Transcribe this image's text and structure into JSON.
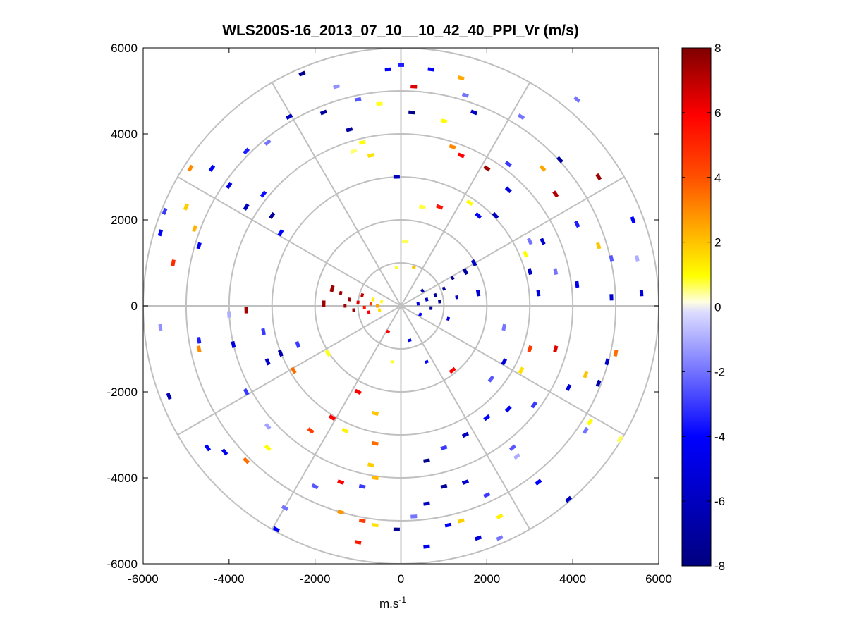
{
  "window": {
    "title": "WLS200S-16_2013_07_10__10_42_40_PPI_Vr (m/s)"
  },
  "chart_data": {
    "type": "scatter",
    "subtype": "polar-ppi",
    "title": "WLS200S-16_2013_07_10__10_42_40_PPI_Vr (m/s)",
    "xlabel": "m.s",
    "xlabel_superscript": "-1",
    "ylabel": "",
    "xlim": [
      -6000,
      6000
    ],
    "ylim": [
      -6000,
      6000
    ],
    "x_ticks": [
      -6000,
      -4000,
      -2000,
      0,
      2000,
      4000,
      6000
    ],
    "y_ticks": [
      -6000,
      -4000,
      -2000,
      0,
      2000,
      4000,
      6000
    ],
    "polar_rings": [
      1000,
      2000,
      3000,
      4000,
      5000,
      6000
    ],
    "polar_spokes_deg": [
      0,
      30,
      60,
      90,
      120,
      150,
      180,
      210,
      240,
      270,
      300,
      330
    ],
    "grid": true,
    "colorbar": {
      "min": -8,
      "max": 8,
      "ticks": [
        -8,
        -6,
        -4,
        -2,
        0,
        2,
        4,
        6,
        8
      ],
      "colormap": "blue-white-yellow-red",
      "colors": {
        "minus8": "#00007f",
        "minus4": "#0000ff",
        "zero_low": "#dcdcff",
        "zero_high": "#ffffe0",
        "plus1": "#ffff00",
        "plus4": "#ff5000",
        "plus6": "#ff0000",
        "plus8": "#7f0000"
      }
    },
    "points": [
      {
        "x": -550,
        "y": 0,
        "v": 2.5
      },
      {
        "x": -700,
        "y": 50,
        "v": 4.5
      },
      {
        "x": -850,
        "y": -40,
        "v": 5.5
      },
      {
        "x": -1000,
        "y": 80,
        "v": 6.5
      },
      {
        "x": -1200,
        "y": 150,
        "v": 7.5
      },
      {
        "x": -1400,
        "y": 300,
        "v": 7.5
      },
      {
        "x": -1600,
        "y": 400,
        "v": 7.5
      },
      {
        "x": -1800,
        "y": 50,
        "v": 7.5
      },
      {
        "x": -1100,
        "y": -100,
        "v": 7.5
      },
      {
        "x": -650,
        "y": 150,
        "v": 1.2
      },
      {
        "x": -450,
        "y": 100,
        "v": 0.8
      },
      {
        "x": -500,
        "y": -100,
        "v": 1.5
      },
      {
        "x": -900,
        "y": 250,
        "v": 7
      },
      {
        "x": -1300,
        "y": 0,
        "v": 7.5
      },
      {
        "x": -750,
        "y": -150,
        "v": 6
      },
      {
        "x": 400,
        "y": 50,
        "v": -5
      },
      {
        "x": 600,
        "y": 150,
        "v": -6
      },
      {
        "x": 800,
        "y": 250,
        "v": -7
      },
      {
        "x": 1000,
        "y": 400,
        "v": -7
      },
      {
        "x": 1200,
        "y": 650,
        "v": -7.5
      },
      {
        "x": 1500,
        "y": 800,
        "v": -7
      },
      {
        "x": 1700,
        "y": 1000,
        "v": -6
      },
      {
        "x": 700,
        "y": -50,
        "v": -7
      },
      {
        "x": 900,
        "y": 100,
        "v": -7.5
      },
      {
        "x": 500,
        "y": 350,
        "v": -6.5
      },
      {
        "x": 1300,
        "y": 200,
        "v": -6
      },
      {
        "x": 1800,
        "y": 300,
        "v": -5.5
      },
      {
        "x": 450,
        "y": -200,
        "v": -4
      },
      {
        "x": 1100,
        "y": -300,
        "v": -5
      },
      {
        "x": -100,
        "y": 900,
        "v": 0.8
      },
      {
        "x": 100,
        "y": 1500,
        "v": 0.7
      },
      {
        "x": 300,
        "y": 900,
        "v": 2
      },
      {
        "x": -200,
        "y": -1300,
        "v": 0.9
      },
      {
        "x": -300,
        "y": -600,
        "v": 6
      },
      {
        "x": 200,
        "y": -800,
        "v": -5
      },
      {
        "x": 600,
        "y": -1300,
        "v": -4
      },
      {
        "x": 1200,
        "y": -1500,
        "v": 6
      },
      {
        "x": -4700,
        "y": 1400,
        "v": -4.5
      },
      {
        "x": -5600,
        "y": 1700,
        "v": -4
      },
      {
        "x": -5300,
        "y": 1000,
        "v": 5
      },
      {
        "x": -5500,
        "y": 2200,
        "v": -3
      },
      {
        "x": -5000,
        "y": 2300,
        "v": 1.8
      },
      {
        "x": -4800,
        "y": 1800,
        "v": 2.3
      },
      {
        "x": -3600,
        "y": 2300,
        "v": -6
      },
      {
        "x": -3000,
        "y": 2100,
        "v": -7
      },
      {
        "x": -2800,
        "y": 1700,
        "v": -4
      },
      {
        "x": -4400,
        "y": 3200,
        "v": -4
      },
      {
        "x": -3600,
        "y": 3600,
        "v": -3.5
      },
      {
        "x": -3100,
        "y": 3800,
        "v": -2
      },
      {
        "x": -4900,
        "y": 3200,
        "v": 3
      },
      {
        "x": -4000,
        "y": 2800,
        "v": -5
      },
      {
        "x": -3200,
        "y": 2600,
        "v": -3.8
      },
      {
        "x": -2300,
        "y": 5400,
        "v": -7.5
      },
      {
        "x": -1800,
        "y": 4500,
        "v": -7
      },
      {
        "x": -1000,
        "y": 4800,
        "v": -2.5
      },
      {
        "x": -1500,
        "y": 5100,
        "v": -1.5
      },
      {
        "x": -2600,
        "y": 4400,
        "v": -6
      },
      {
        "x": -1200,
        "y": 4100,
        "v": -7
      },
      {
        "x": -300,
        "y": 5500,
        "v": -4
      },
      {
        "x": -900,
        "y": 3800,
        "v": 1
      },
      {
        "x": -700,
        "y": 3500,
        "v": 1.5
      },
      {
        "x": -1100,
        "y": 3600,
        "v": 0.6
      },
      {
        "x": -500,
        "y": 4700,
        "v": 0.9
      },
      {
        "x": -100,
        "y": 3000,
        "v": -6
      },
      {
        "x": 0,
        "y": 5600,
        "v": -3.5
      },
      {
        "x": 300,
        "y": 5100,
        "v": 6.5
      },
      {
        "x": 250,
        "y": 4500,
        "v": -7.5
      },
      {
        "x": 700,
        "y": 5500,
        "v": -4
      },
      {
        "x": 1400,
        "y": 5300,
        "v": 2.5
      },
      {
        "x": 1500,
        "y": 4900,
        "v": -2
      },
      {
        "x": 1700,
        "y": 4500,
        "v": -6
      },
      {
        "x": 1000,
        "y": 4300,
        "v": 1
      },
      {
        "x": 1200,
        "y": 3700,
        "v": 3
      },
      {
        "x": 1400,
        "y": 3500,
        "v": 6
      },
      {
        "x": 2000,
        "y": 3200,
        "v": 7.5
      },
      {
        "x": 2500,
        "y": 3300,
        "v": -3
      },
      {
        "x": 2800,
        "y": 4400,
        "v": -2
      },
      {
        "x": 3300,
        "y": 3200,
        "v": 2.5
      },
      {
        "x": 3700,
        "y": 3400,
        "v": -7
      },
      {
        "x": 3600,
        "y": 2600,
        "v": 7.2
      },
      {
        "x": 4600,
        "y": 3000,
        "v": 7.5
      },
      {
        "x": 4100,
        "y": 4800,
        "v": -2
      },
      {
        "x": 2200,
        "y": 2100,
        "v": -6
      },
      {
        "x": 2500,
        "y": 2700,
        "v": -5
      },
      {
        "x": 1800,
        "y": 2100,
        "v": -4
      },
      {
        "x": 1600,
        "y": 2400,
        "v": 1
      },
      {
        "x": 900,
        "y": 2300,
        "v": 5.5
      },
      {
        "x": 500,
        "y": 2300,
        "v": 0.8
      },
      {
        "x": 3000,
        "y": 1500,
        "v": -2
      },
      {
        "x": 3300,
        "y": 1500,
        "v": -5.5
      },
      {
        "x": 4100,
        "y": 1900,
        "v": -3.5
      },
      {
        "x": 4600,
        "y": 1400,
        "v": 2
      },
      {
        "x": 5400,
        "y": 2000,
        "v": -4
      },
      {
        "x": 5500,
        "y": 1100,
        "v": -1
      },
      {
        "x": 4900,
        "y": 1100,
        "v": -2.5
      },
      {
        "x": 4100,
        "y": 500,
        "v": -4.5
      },
      {
        "x": 3600,
        "y": 800,
        "v": -2
      },
      {
        "x": 3000,
        "y": 800,
        "v": -6
      },
      {
        "x": 2900,
        "y": 1200,
        "v": 1
      },
      {
        "x": 3200,
        "y": 300,
        "v": -5
      },
      {
        "x": 5600,
        "y": 300,
        "v": -5
      },
      {
        "x": 4900,
        "y": 200,
        "v": -5.5
      },
      {
        "x": -5600,
        "y": -500,
        "v": -1.5
      },
      {
        "x": -4700,
        "y": -800,
        "v": -3.5
      },
      {
        "x": -4700,
        "y": -1000,
        "v": 3
      },
      {
        "x": -5400,
        "y": -2100,
        "v": -6.5
      },
      {
        "x": -3600,
        "y": -100,
        "v": 7.5
      },
      {
        "x": -4000,
        "y": -200,
        "v": -1
      },
      {
        "x": -3200,
        "y": -600,
        "v": -3
      },
      {
        "x": -3900,
        "y": -900,
        "v": -5
      },
      {
        "x": -3100,
        "y": -1300,
        "v": -5.5
      },
      {
        "x": -2800,
        "y": -1100,
        "v": -6.5
      },
      {
        "x": -2400,
        "y": -900,
        "v": -3
      },
      {
        "x": -1700,
        "y": -1100,
        "v": 0.9
      },
      {
        "x": -2500,
        "y": -1500,
        "v": 3.5
      },
      {
        "x": -3600,
        "y": -2000,
        "v": -3
      },
      {
        "x": -3100,
        "y": -2800,
        "v": -1.2
      },
      {
        "x": -4500,
        "y": -3300,
        "v": -4
      },
      {
        "x": -4100,
        "y": -3400,
        "v": -4.5
      },
      {
        "x": -3600,
        "y": -3600,
        "v": 3.5
      },
      {
        "x": -3100,
        "y": -3300,
        "v": 1
      },
      {
        "x": -2100,
        "y": -2900,
        "v": 4.5
      },
      {
        "x": -1600,
        "y": -2600,
        "v": 6
      },
      {
        "x": -1300,
        "y": -2900,
        "v": 1.2
      },
      {
        "x": -1000,
        "y": -2000,
        "v": 6
      },
      {
        "x": -600,
        "y": -2500,
        "v": 2
      },
      {
        "x": -600,
        "y": -3200,
        "v": 3.5
      },
      {
        "x": -700,
        "y": -3700,
        "v": 1.8
      },
      {
        "x": -600,
        "y": -4000,
        "v": 2.2
      },
      {
        "x": -1400,
        "y": -4100,
        "v": 6
      },
      {
        "x": -900,
        "y": -4200,
        "v": -3
      },
      {
        "x": -2000,
        "y": -4200,
        "v": -2.5
      },
      {
        "x": -2700,
        "y": -4700,
        "v": -2
      },
      {
        "x": -1400,
        "y": -4800,
        "v": 2.8
      },
      {
        "x": -900,
        "y": -5000,
        "v": 4.5
      },
      {
        "x": -600,
        "y": -5100,
        "v": 1.5
      },
      {
        "x": -100,
        "y": -5200,
        "v": -7.5
      },
      {
        "x": -2900,
        "y": -5200,
        "v": -4
      },
      {
        "x": -1000,
        "y": -5500,
        "v": 5.5
      },
      {
        "x": 300,
        "y": -4900,
        "v": -2
      },
      {
        "x": 600,
        "y": -5600,
        "v": -4.5
      },
      {
        "x": 600,
        "y": -4600,
        "v": -6
      },
      {
        "x": 1100,
        "y": -5100,
        "v": -4
      },
      {
        "x": 1400,
        "y": -5000,
        "v": 1.8
      },
      {
        "x": 1800,
        "y": -5400,
        "v": -5
      },
      {
        "x": 2300,
        "y": -5400,
        "v": -2
      },
      {
        "x": 2300,
        "y": -4900,
        "v": 1.2
      },
      {
        "x": 2000,
        "y": -4400,
        "v": -3
      },
      {
        "x": 1500,
        "y": -4100,
        "v": -5.5
      },
      {
        "x": 1000,
        "y": -4200,
        "v": -7
      },
      {
        "x": 600,
        "y": -3600,
        "v": -7.5
      },
      {
        "x": 1000,
        "y": -3300,
        "v": -3
      },
      {
        "x": 1500,
        "y": -3000,
        "v": -6
      },
      {
        "x": 2000,
        "y": -2600,
        "v": -4
      },
      {
        "x": 2500,
        "y": -2400,
        "v": -4.5
      },
      {
        "x": 2600,
        "y": -3300,
        "v": -2.5
      },
      {
        "x": 2700,
        "y": -3500,
        "v": -1
      },
      {
        "x": 3200,
        "y": -4100,
        "v": -4
      },
      {
        "x": 3900,
        "y": -4500,
        "v": -6
      },
      {
        "x": 3900,
        "y": -1900,
        "v": -5
      },
      {
        "x": 4300,
        "y": -1600,
        "v": 2
      },
      {
        "x": 4600,
        "y": -1800,
        "v": -6.5
      },
      {
        "x": 4800,
        "y": -1300,
        "v": -5.5
      },
      {
        "x": 5000,
        "y": -1100,
        "v": 3.5
      },
      {
        "x": 4400,
        "y": -2700,
        "v": 1
      },
      {
        "x": 4300,
        "y": -2900,
        "v": -2
      },
      {
        "x": 5100,
        "y": -3100,
        "v": 0.7
      },
      {
        "x": 3600,
        "y": -1000,
        "v": 6.5
      },
      {
        "x": 3000,
        "y": -1000,
        "v": 4.5
      },
      {
        "x": 2400,
        "y": -500,
        "v": -2
      },
      {
        "x": 2800,
        "y": -1500,
        "v": 1.5
      },
      {
        "x": 2400,
        "y": -1300,
        "v": -5
      },
      {
        "x": 3100,
        "y": -2300,
        "v": -3
      },
      {
        "x": 2100,
        "y": -1700,
        "v": -2.5
      }
    ]
  }
}
